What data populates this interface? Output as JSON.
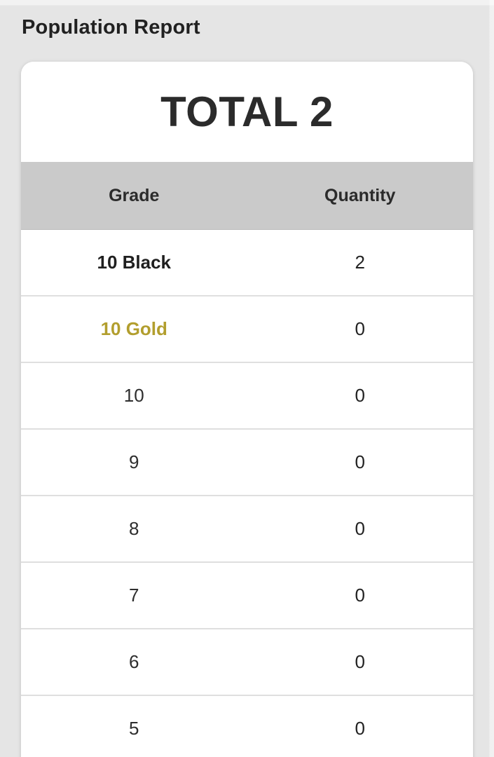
{
  "page": {
    "title": "Population Report"
  },
  "report": {
    "total": {
      "prefix": "TOTAL",
      "value": "2"
    }
  },
  "table": {
    "columns": {
      "grade": "Grade",
      "quantity": "Quantity"
    },
    "rows": [
      {
        "grade": "10 Black",
        "quantity": "2"
      },
      {
        "grade": "10 Gold",
        "quantity": "0"
      },
      {
        "grade": "10",
        "quantity": "0"
      },
      {
        "grade": "9",
        "quantity": "0"
      },
      {
        "grade": "8",
        "quantity": "0"
      },
      {
        "grade": "7",
        "quantity": "0"
      },
      {
        "grade": "6",
        "quantity": "0"
      },
      {
        "grade": "5",
        "quantity": "0"
      }
    ]
  },
  "colors": {
    "gold": "#b29e2e",
    "accent_text": "#222222",
    "header_row_bg": "#cacaca",
    "page_bg": "#e5e5e5"
  }
}
